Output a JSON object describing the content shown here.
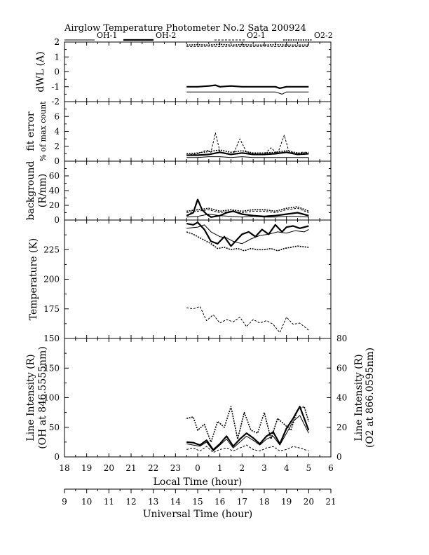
{
  "chart_data": {
    "type": "line",
    "title": "Airglow Temperature Photometer No.2  Sata        200924",
    "legend": [
      {
        "name": "OH-1",
        "style": "solid-thin"
      },
      {
        "name": "OH-2",
        "style": "solid-thick"
      },
      {
        "name": "O2-1",
        "style": "dashed-thin"
      },
      {
        "name": "O2-2",
        "style": "dashed-thick"
      }
    ],
    "x_local": {
      "label": "Local Time (hour)",
      "ticks": [
        18,
        19,
        20,
        21,
        22,
        23,
        0,
        1,
        2,
        3,
        4,
        5,
        6
      ],
      "tick_labels": [
        "18",
        "19",
        "20",
        "21",
        "22",
        "23",
        "0",
        "1",
        "2",
        "3",
        "4",
        "5",
        "6"
      ]
    },
    "x_universal": {
      "label": "Universal Time (hour)",
      "ticks": [
        9,
        10,
        11,
        12,
        13,
        14,
        15,
        16,
        17,
        18,
        19,
        20,
        21
      ],
      "tick_labels": [
        "9",
        "10",
        "11",
        "12",
        "13",
        "14",
        "15",
        "16",
        "17",
        "18",
        "19",
        "20",
        "21"
      ]
    },
    "panels": [
      {
        "id": "dwl",
        "ylabel": "dWL (A)",
        "ylim": [
          -2,
          2
        ],
        "yticks": [
          -2,
          -1,
          0,
          1,
          2
        ],
        "series": [
          {
            "name": "OH-1",
            "style": "solid-thin",
            "x": [
              14.5,
              15,
              15.5,
              16,
              16.5,
              17,
              17.5,
              18,
              18.5,
              18.8,
              19,
              19.5,
              20
            ],
            "y": [
              -1.35,
              -1.35,
              -1.35,
              -1.35,
              -1.35,
              -1.35,
              -1.35,
              -1.35,
              -1.35,
              -1.5,
              -1.35,
              -1.35,
              -1.35
            ]
          },
          {
            "name": "OH-2",
            "style": "solid-thick",
            "x": [
              14.5,
              15,
              15.5,
              15.8,
              16,
              16.5,
              17,
              17.5,
              18,
              18.5,
              18.7,
              19,
              19.5,
              20
            ],
            "y": [
              -1.0,
              -1.0,
              -0.95,
              -0.9,
              -1.0,
              -0.95,
              -1.0,
              -1.0,
              -1.0,
              -1.0,
              -1.1,
              -1.0,
              -1.0,
              -1.0
            ]
          },
          {
            "name": "O2-1",
            "style": "dashed-thin",
            "x": [
              14.5,
              15,
              15.5,
              16,
              16.5,
              17,
              17.5,
              18,
              18.5,
              19,
              19.5,
              20
            ],
            "y": [
              1.7,
              1.7,
              1.72,
              1.7,
              1.72,
              1.7,
              1.7,
              1.72,
              1.7,
              1.7,
              1.7,
              1.7
            ]
          },
          {
            "name": "O2-2",
            "style": "dashed-thick",
            "x": [
              14.5,
              15,
              15.5,
              16,
              16.5,
              17,
              17.5,
              18,
              18.5,
              19,
              19.5,
              20
            ],
            "y": [
              1.8,
              1.82,
              1.8,
              1.85,
              1.8,
              1.82,
              1.8,
              1.8,
              1.82,
              1.8,
              1.8,
              1.8
            ]
          }
        ]
      },
      {
        "id": "fit",
        "ylabel": "fit error",
        "ylabel2": "% of max count",
        "ylim": [
          0,
          8
        ],
        "yticks": [
          0,
          2,
          4,
          6
        ],
        "series": [
          {
            "name": "OH-1",
            "style": "solid-thin",
            "x": [
              14.5,
              15,
              15.5,
              16,
              16.5,
              17,
              17.5,
              18,
              18.5,
              19,
              19.5,
              20
            ],
            "y": [
              0.5,
              0.5,
              0.6,
              0.6,
              0.5,
              0.6,
              0.5,
              0.5,
              0.5,
              0.5,
              0.5,
              0.5
            ]
          },
          {
            "name": "OH-2",
            "style": "solid-thick",
            "x": [
              14.5,
              15,
              15.5,
              16,
              16.5,
              17,
              17.5,
              18,
              18.5,
              19,
              19.5,
              20
            ],
            "y": [
              0.8,
              0.8,
              0.9,
              1.2,
              0.9,
              1.1,
              0.9,
              0.9,
              1.0,
              1.2,
              0.9,
              1.0
            ]
          },
          {
            "name": "O2-1",
            "style": "dashed-thin",
            "x": [
              14.5,
              15,
              15.4,
              15.6,
              15.8,
              16,
              16.2,
              16.6,
              16.9,
              17.2,
              17.5,
              18,
              18.3,
              18.6,
              18.9,
              19.1,
              19.4,
              19.7,
              20
            ],
            "y": [
              0.8,
              1.0,
              1.5,
              1.2,
              3.8,
              1.3,
              1.0,
              0.9,
              3.0,
              1.2,
              1.0,
              0.9,
              1.8,
              1.0,
              3.5,
              1.4,
              1.0,
              1.2,
              1.2
            ]
          },
          {
            "name": "O2-2",
            "style": "dashed-thick",
            "x": [
              14.5,
              15,
              15.5,
              16,
              16.5,
              17,
              17.5,
              18,
              18.5,
              19,
              19.5,
              20
            ],
            "y": [
              1.0,
              1.1,
              1.3,
              1.5,
              1.2,
              1.4,
              1.1,
              1.1,
              1.2,
              1.4,
              1.1,
              1.1
            ]
          }
        ]
      },
      {
        "id": "bg",
        "ylabel": "background",
        "ylabel2": "(R/nm)",
        "ylim": [
          0,
          80
        ],
        "yticks": [
          0,
          20,
          40,
          60
        ],
        "series": [
          {
            "name": "OH-1",
            "style": "solid-thin",
            "x": [
              14.5,
              15,
              15.5,
              16,
              16.5,
              17,
              17.5,
              18,
              18.5,
              19,
              19.5,
              20
            ],
            "y": [
              4,
              5,
              8,
              6,
              5,
              4,
              5,
              4,
              4,
              5,
              5,
              4
            ]
          },
          {
            "name": "OH-2",
            "style": "solid-thick",
            "x": [
              14.5,
              14.8,
              15,
              15.2,
              15.4,
              15.6,
              16,
              16.3,
              16.6,
              17,
              17.5,
              18,
              18.5,
              19,
              19.5,
              20
            ],
            "y": [
              6,
              10,
              28,
              14,
              8,
              4,
              6,
              10,
              12,
              8,
              6,
              5,
              6,
              8,
              10,
              6
            ]
          },
          {
            "name": "O2-1",
            "style": "dashed-thin",
            "x": [
              14.5,
              15,
              15.5,
              16,
              16.5,
              17,
              17.5,
              18,
              18.5,
              19,
              19.5,
              20
            ],
            "y": [
              10,
              12,
              14,
              10,
              12,
              10,
              12,
              12,
              10,
              14,
              16,
              10
            ]
          },
          {
            "name": "O2-2",
            "style": "dashed-thick",
            "x": [
              14.5,
              15,
              15.5,
              16,
              16.5,
              17,
              17.5,
              18,
              18.5,
              19,
              19.5,
              20
            ],
            "y": [
              12,
              14,
              16,
              12,
              14,
              12,
              14,
              14,
              12,
              16,
              18,
              12
            ]
          }
        ]
      },
      {
        "id": "temp",
        "ylabel": "Temperature (K)",
        "ylim": [
          150,
          250
        ],
        "yticks": [
          150,
          175,
          200,
          225
        ],
        "series": [
          {
            "name": "OH-1",
            "style": "solid-thin",
            "x": [
              14.5,
              15,
              15.3,
              15.6,
              16,
              16.3,
              16.6,
              17,
              17.4,
              17.8,
              18.2,
              18.6,
              19,
              19.4,
              19.8,
              20
            ],
            "y": [
              243,
              244,
              246,
              240,
              236,
              235,
              232,
              230,
              234,
              237,
              238,
              240,
              239,
              241,
              240,
              242
            ]
          },
          {
            "name": "OH-2",
            "style": "solid-thick",
            "x": [
              14.5,
              14.8,
              15,
              15.3,
              15.6,
              15.9,
              16.2,
              16.5,
              16.8,
              17,
              17.3,
              17.6,
              17.9,
              18.2,
              18.5,
              18.8,
              19,
              19.3,
              19.6,
              20
            ],
            "y": [
              247,
              246,
              248,
              242,
              232,
              230,
              236,
              228,
              234,
              238,
              240,
              236,
              242,
              238,
              246,
              240,
              244,
              245,
              243,
              245
            ]
          },
          {
            "name": "O2-1",
            "style": "dashed-thin",
            "x": [
              14.5,
              14.8,
              15.1,
              15.4,
              15.7,
              16,
              16.3,
              16.6,
              16.9,
              17.2,
              17.5,
              17.8,
              18.1,
              18.4,
              18.7,
              19,
              19.3,
              19.6,
              20
            ],
            "y": [
              176,
              175,
              177,
              165,
              170,
              163,
              166,
              164,
              168,
              160,
              166,
              163,
              165,
              162,
              155,
              168,
              162,
              163,
              157
            ]
          },
          {
            "name": "O2-2",
            "style": "dashed-thick",
            "x": [
              14.5,
              14.8,
              15,
              15.3,
              15.6,
              15.9,
              16.2,
              16.5,
              16.8,
              17.1,
              17.4,
              17.7,
              18,
              18.3,
              18.6,
              18.9,
              19.2,
              19.5,
              20
            ],
            "y": [
              240,
              238,
              236,
              233,
              230,
              226,
              227,
              225,
              226,
              224,
              226,
              225,
              225,
              226,
              224,
              226,
              227,
              228,
              227
            ]
          }
        ]
      },
      {
        "id": "int",
        "ylabel": "Line Intensity (R)",
        "ylabel2": "(OH at 846.5555nm)",
        "y2label": "Line Intensity (R)",
        "y2label2": "(O2 at 866.0595nm)",
        "ylim": [
          0,
          200
        ],
        "yticks": [
          0,
          50,
          100,
          150
        ],
        "y2lim": [
          0,
          80
        ],
        "y2ticks": [
          0,
          20,
          40,
          60,
          80
        ],
        "series": [
          {
            "name": "OH-1",
            "style": "solid-thin",
            "axis": "left",
            "x": [
              14.5,
              14.8,
              15.1,
              15.4,
              15.7,
              16,
              16.3,
              16.6,
              16.9,
              17.2,
              17.5,
              17.8,
              18.1,
              18.4,
              18.7,
              19,
              19.3,
              19.6,
              20
            ],
            "y": [
              22,
              20,
              18,
              25,
              10,
              20,
              30,
              15,
              25,
              35,
              28,
              20,
              30,
              35,
              20,
              40,
              60,
              70,
              40
            ]
          },
          {
            "name": "OH-2",
            "style": "solid-thick",
            "axis": "left",
            "x": [
              14.5,
              14.8,
              15.1,
              15.4,
              15.7,
              16,
              16.3,
              16.6,
              16.9,
              17.2,
              17.5,
              17.8,
              18.1,
              18.4,
              18.7,
              19,
              19.3,
              19.6,
              20
            ],
            "y": [
              25,
              24,
              20,
              28,
              12,
              22,
              35,
              18,
              30,
              40,
              32,
              22,
              35,
              42,
              22,
              48,
              65,
              85,
              45
            ]
          },
          {
            "name": "O2-1",
            "style": "dashed-thin",
            "axis": "right",
            "x": [
              14.5,
              14.8,
              15.1,
              15.4,
              15.7,
              16,
              16.3,
              16.6,
              16.9,
              17.2,
              17.5,
              17.8,
              18.1,
              18.4,
              18.7,
              19,
              19.3,
              19.6,
              20
            ],
            "y": [
              5,
              6,
              4,
              7,
              3,
              5,
              6,
              4,
              6,
              8,
              5,
              4,
              6,
              7,
              4,
              5,
              7,
              6,
              4
            ]
          },
          {
            "name": "O2-2",
            "style": "dashed-thick",
            "axis": "right",
            "x": [
              14.5,
              14.8,
              15,
              15.3,
              15.6,
              15.9,
              16.2,
              16.5,
              16.8,
              17.1,
              17.4,
              17.7,
              18,
              18.3,
              18.6,
              18.9,
              19.2,
              19.5,
              19.8,
              20
            ],
            "y": [
              26,
              27,
              18,
              22,
              10,
              24,
              20,
              34,
              12,
              30,
              18,
              16,
              30,
              12,
              26,
              22,
              18,
              32,
              34,
              24
            ]
          }
        ]
      }
    ]
  }
}
